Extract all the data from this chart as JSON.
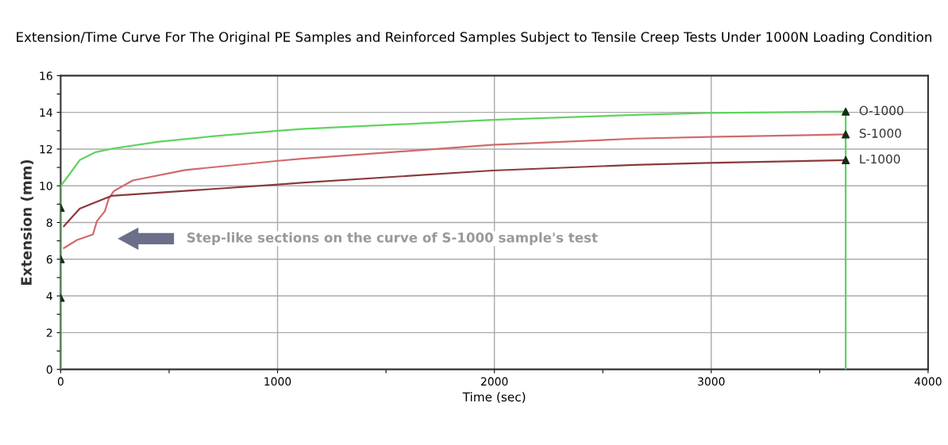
{
  "chart_data": {
    "type": "line",
    "title": "Extension/Time Curve For The Original PE Samples and Reinforced Samples Subject to Tensile Creep Tests Under 1000N Loading Condition",
    "xlabel": "Time (sec)",
    "ylabel": "Extension (mm)",
    "xlim": [
      0,
      4000
    ],
    "ylim": [
      0,
      16
    ],
    "xticks": [
      0,
      {
        "value": 500,
        "label": null
      },
      1000,
      {
        "value": 1500,
        "label": null
      },
      2000,
      {
        "value": 2500,
        "label": null
      },
      3000,
      {
        "value": 3500,
        "label": null
      },
      4000
    ],
    "yticks": [
      0,
      {
        "value": 1,
        "label": null
      },
      2,
      {
        "value": 3,
        "label": null
      },
      4,
      {
        "value": 5,
        "label": null
      },
      6,
      {
        "value": 7,
        "label": null
      },
      8,
      {
        "value": 9,
        "label": null
      },
      10,
      {
        "value": 11,
        "label": null
      },
      12,
      {
        "value": 13,
        "label": null
      },
      14,
      {
        "value": 15,
        "label": null
      },
      16
    ],
    "grid": true,
    "line_style": "solid",
    "series": [
      {
        "name": "O-1000",
        "color": "#5fd35f",
        "x": [
          0,
          0,
          37,
          88,
          161,
          246,
          453,
          697,
          1002,
          1111,
          1989,
          2647,
          2987,
          3620,
          3620
        ],
        "values": [
          0,
          10,
          10.57,
          11.4,
          11.83,
          12.04,
          12.4,
          12.69,
          13.0,
          13.09,
          13.59,
          13.86,
          13.97,
          14.04,
          0
        ]
      },
      {
        "name": "S-1000",
        "color": "#d06a6a",
        "x": [
          15,
          76,
          149,
          167,
          204,
          222,
          246,
          332,
          574,
          1002,
          1111,
          1989,
          2647,
          2987,
          3620
        ],
        "values": [
          6.61,
          7.05,
          7.35,
          8.07,
          8.62,
          9.31,
          9.72,
          10.29,
          10.86,
          11.36,
          11.47,
          12.23,
          12.57,
          12.66,
          12.8
        ]
      },
      {
        "name": "L-1000",
        "color": "#8b3a3a",
        "x": [
          15,
          30,
          88,
          234,
          574,
          1002,
          1111,
          1989,
          2647,
          2987,
          3620
        ],
        "values": [
          7.8,
          8.0,
          8.76,
          9.45,
          9.72,
          10.07,
          10.17,
          10.83,
          11.14,
          11.25,
          11.4
        ]
      },
      {
        "type": "scatter",
        "marker": "triangle",
        "color": "#1a2a1a",
        "x": [
          0,
          0,
          0,
          3620,
          3620,
          3620
        ],
        "values": [
          8.8,
          6.0,
          3.9,
          14.04,
          12.8,
          11.4
        ]
      }
    ],
    "annotations": [
      "Step-like sections on the curve of S-1000 sample's test"
    ]
  }
}
